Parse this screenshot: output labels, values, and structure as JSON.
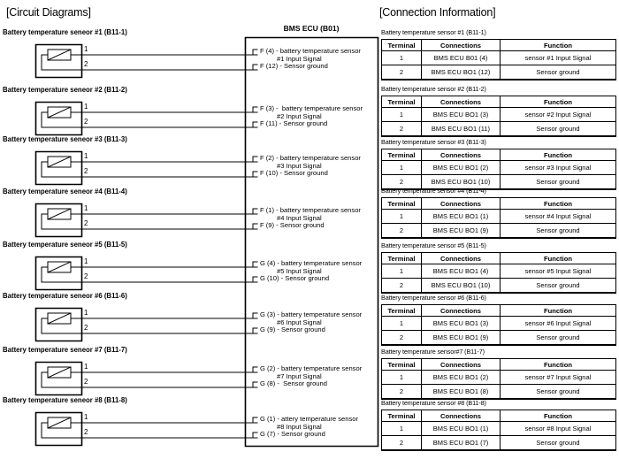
{
  "left": {
    "title": "[Circuit Diagrams]"
  },
  "right": {
    "title": "[Connection Information]"
  },
  "ecu": {
    "title": "BMS ECU (B01)"
  },
  "table_headers": [
    "Terminal",
    "Connections",
    "Function"
  ],
  "sensors": [
    {
      "label": "Battery temperature seneor #1 (B11-1)",
      "pin1": "1",
      "pin2": "2",
      "ecu_pin1_text": "F (4) - battery temperature sensor",
      "ecu_cont_text": "#1 Input Signal",
      "ecu_pin2_text": "F (12) - Sensor ground",
      "table_caption": "Battery temperature sensor #1 (B11-1)",
      "table_rows": [
        [
          "1",
          "BMS ECU B01 (4)",
          "sensor #1 Input Signal"
        ],
        [
          "2",
          "BMS ECU BO1 (12)",
          "Sensor ground"
        ]
      ]
    },
    {
      "label": "Battery temperature seneor #2 (B11-2)",
      "pin1": "1",
      "pin2": "2",
      "ecu_pin1_text": "F (3) -  battery temperature sensor",
      "ecu_cont_text": "#2 Input Signal",
      "ecu_pin2_text": "F (11) - Sensor ground",
      "table_caption": "Battery temperature sensor #2 (B11-2)",
      "table_rows": [
        [
          "1",
          "BMS ECU BO1 (3)",
          "sensor #2 Input Signal"
        ],
        [
          "2",
          "BMS ECU BO1 (11)",
          "Sensor ground"
        ]
      ]
    },
    {
      "label": "Battery temperature seneor #3 (B11-3)",
      "pin1": "1",
      "pin2": "2",
      "ecu_pin1_text": "F (2) - battery temperature sensor",
      "ecu_cont_text": "#3 Input Signal",
      "ecu_pin2_text": "F (10) - Sensor ground",
      "table_caption": "Battery temperature sensor #3 (B11-3)",
      "table_rows": [
        [
          "1",
          "BMS ECU BO1 (2)",
          "sensor #3 Input Signal"
        ],
        [
          "2",
          "BMS ECU BO1 (10)",
          "Sensor ground"
        ]
      ]
    },
    {
      "label": "Battery temperature seneor #4 (B11-4)",
      "pin1": "1",
      "pin2": "2",
      "ecu_pin1_text": "F (1) - battery temperature sensor",
      "ecu_cont_text": "#4 Input Signal",
      "ecu_pin2_text": "F (9) - Sensor ground",
      "table_caption": "Battery temperature sensor #4 (B11-4)",
      "table_rows": [
        [
          "1",
          "BMS ECU BO1 (1)",
          "sensor #4 Input Signal"
        ],
        [
          "2",
          "BMS ECU BO1 (9)",
          "Sensor ground"
        ]
      ]
    },
    {
      "label": "Battery temperature seneor #5 (B11-5)",
      "pin1": "1",
      "pin2": "2",
      "ecu_pin1_text": "G (4) - battery temperature sensor",
      "ecu_cont_text": "#5 Input Signal",
      "ecu_pin2_text": "G (10) - Sensor ground",
      "table_caption": "Battery temperature sensor #5 (B11-5)",
      "table_rows": [
        [
          "1",
          "BMS ECU BO1 (4)",
          "sensor #5 Input Signal"
        ],
        [
          "2",
          "BMS ECU BO1 (10)",
          "Sensor ground"
        ]
      ]
    },
    {
      "label": "Battery temperature seneor #6 (B11-6)",
      "pin1": "1",
      "pin2": "2",
      "ecu_pin1_text": "G (3) - battery temperature sensor",
      "ecu_cont_text": "#6 Input Signal",
      "ecu_pin2_text": "G (9) - Sensor ground",
      "table_caption": "Battery temperature sensor #6 (B11-6)",
      "table_rows": [
        [
          "1",
          "BMS ECU BO1 (3)",
          "sensor #6 Input Signal"
        ],
        [
          "2",
          "BMS ECU BO1 (9)",
          "Sensor ground"
        ]
      ]
    },
    {
      "label": "Battery temperature seneor #7 (B11-7)",
      "pin1": "1",
      "pin2": "2",
      "ecu_pin1_text": "G (2) - battery temperature sensor",
      "ecu_cont_text": "#7 Input Signal",
      "ecu_pin2_text": "G (8) -  Sensor ground",
      "table_caption": "Battery temperature sensor#7 (B11-7)",
      "table_rows": [
        [
          "1",
          "BMS ECU BO1 (2)",
          "sensor #7 Input Signal"
        ],
        [
          "2",
          "BMS ECU BO1 (8)",
          "Sensor ground"
        ]
      ]
    },
    {
      "label": "Battery temperature seneor #8 (B11-8)",
      "pin1": "1",
      "pin2": "2",
      "ecu_pin1_text": "G (1) - attery temperature sensor",
      "ecu_cont_text": "#8 Input Signal",
      "ecu_pin2_text": "G (7) - Sensor ground",
      "table_caption": "Battery temperature sensor #8 (B11-8)",
      "table_rows": [
        [
          "1",
          "BMS ECU BO1 (1)",
          "sensor #8 Input Signal"
        ],
        [
          "2",
          "BMS ECU BO1 (7)",
          "Sensor ground"
        ]
      ]
    }
  ]
}
